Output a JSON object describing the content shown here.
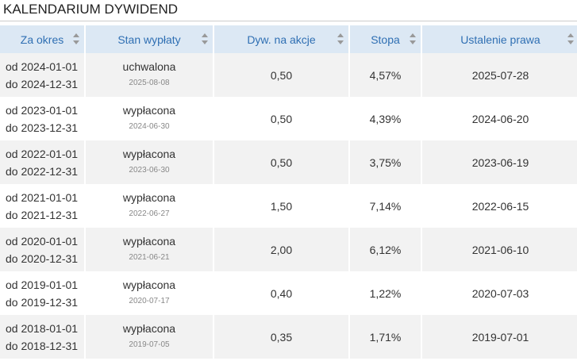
{
  "title": "KALENDARIUM DYWIDEND",
  "table": {
    "headers": [
      "Za okres",
      "Stan wypłaty",
      "Dyw. na akcje",
      "Stopa",
      "Ustalenie prawa"
    ],
    "rows": [
      [
        "od 2024-01-01",
        "do 2024-12-31",
        "uchwalona",
        "2025-08-08",
        "0,50",
        "4,57%",
        "2025-07-28"
      ],
      [
        "od 2023-01-01",
        "do 2023-12-31",
        "wypłacona",
        "2024-06-30",
        "0,50",
        "4,39%",
        "2024-06-20"
      ],
      [
        "od 2022-01-01",
        "do 2022-12-31",
        "wypłacona",
        "2023-06-30",
        "0,50",
        "3,75%",
        "2023-06-19"
      ],
      [
        "od 2021-01-01",
        "do 2021-12-31",
        "wypłacona",
        "2022-06-27",
        "1,50",
        "7,14%",
        "2022-06-15"
      ],
      [
        "od 2020-01-01",
        "do 2020-12-31",
        "wypłacona",
        "2021-06-21",
        "2,00",
        "6,12%",
        "2021-06-10"
      ],
      [
        "od 2019-01-01",
        "do 2019-12-31",
        "wypłacona",
        "2020-07-17",
        "0,40",
        "1,22%",
        "2020-07-03"
      ],
      [
        "od 2018-01-01",
        "do 2018-12-31",
        "wypłacona",
        "2019-07-05",
        "0,35",
        "1,71%",
        "2019-07-01"
      ]
    ]
  }
}
